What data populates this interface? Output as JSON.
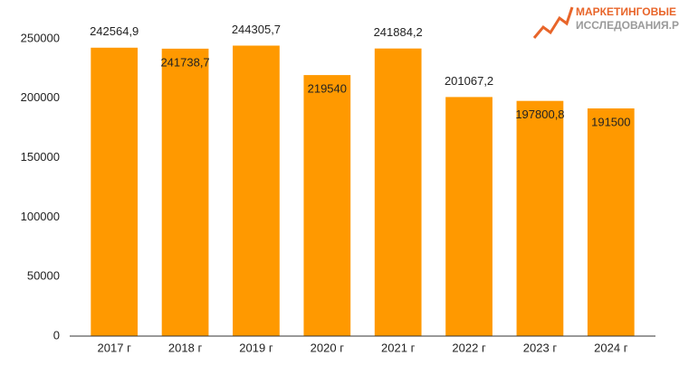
{
  "chart_data": {
    "type": "bar",
    "logo": {
      "line1": "МАРКЕТИНГОВЫЕ",
      "line2": "ИССЛЕДОВАНИЯ.РФ"
    },
    "categories": [
      "2017 г",
      "2018 г",
      "2019 г",
      "2020 г",
      "2021 г",
      "2022 г",
      "2023 г",
      "2024 г"
    ],
    "values": [
      242564.9,
      241738.7,
      244305.7,
      219540,
      241884.2,
      201067.2,
      197800.8,
      191500
    ],
    "value_labels": [
      "242564,9",
      "241738,7",
      "244305,7",
      "219540",
      "241884,2",
      "201067,2",
      "197800,8",
      "191500"
    ],
    "color": "#ff9900",
    "ylim": [
      0,
      250000
    ],
    "yticks": [
      0,
      50000,
      100000,
      150000,
      200000,
      250000
    ],
    "grid": false
  }
}
